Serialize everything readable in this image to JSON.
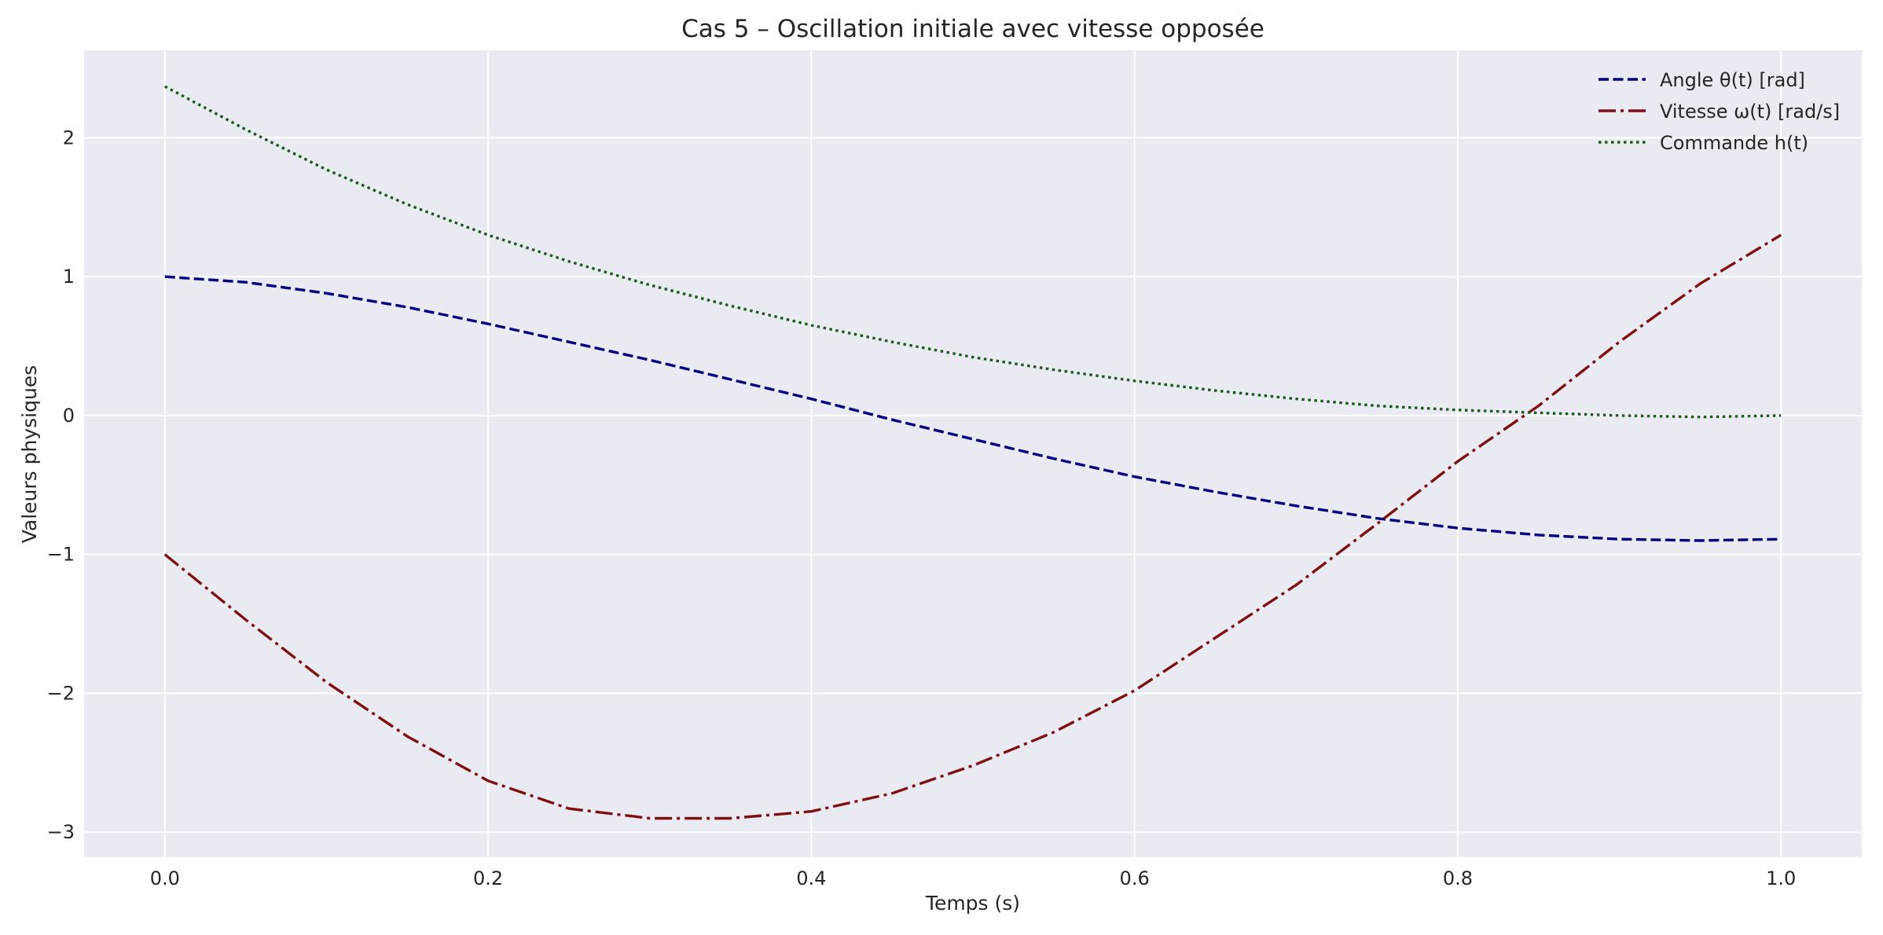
{
  "chart_data": {
    "type": "line",
    "title": "Cas 5 – Oscillation initiale avec vitesse opposée",
    "xlabel": "Temps (s)",
    "ylabel": "Valeurs physiques",
    "xlim": [
      -0.05,
      1.05
    ],
    "ylim": [
      -3.18,
      2.63
    ],
    "xticks": [
      0.0,
      0.2,
      0.4,
      0.6,
      0.8,
      1.0
    ],
    "xtick_labels": [
      "0.0",
      "0.2",
      "0.4",
      "0.6",
      "0.8",
      "1.0"
    ],
    "yticks": [
      -3,
      -2,
      -1,
      0,
      1,
      2
    ],
    "ytick_labels": [
      "−3",
      "−2",
      "−1",
      "0",
      "1",
      "2"
    ],
    "grid": true,
    "legend_position": "top-right",
    "background": "#eaeaf2",
    "x": [
      0.0,
      0.05,
      0.1,
      0.15,
      0.2,
      0.25,
      0.3,
      0.35,
      0.4,
      0.45,
      0.5,
      0.55,
      0.6,
      0.65,
      0.7,
      0.75,
      0.8,
      0.85,
      0.9,
      0.95,
      1.0
    ],
    "series": [
      {
        "name": "Angle θ(t) [rad]",
        "color": "#000080",
        "style": "dashed",
        "values": [
          1.0,
          0.96,
          0.88,
          0.78,
          0.66,
          0.53,
          0.4,
          0.26,
          0.12,
          -0.03,
          -0.17,
          -0.31,
          -0.44,
          -0.55,
          -0.65,
          -0.74,
          -0.81,
          -0.86,
          -0.89,
          -0.9,
          -0.89
        ]
      },
      {
        "name": "Vitesse ω(t) [rad/s]",
        "color": "#7f1010",
        "style": "dashdot",
        "values": [
          -1.0,
          -1.47,
          -1.92,
          -2.31,
          -2.63,
          -2.83,
          -2.9,
          -2.9,
          -2.85,
          -2.72,
          -2.52,
          -2.28,
          -1.98,
          -1.6,
          -1.22,
          -0.78,
          -0.33,
          0.07,
          0.53,
          0.95,
          1.3
        ]
      },
      {
        "name": "Commande h(t)",
        "color": "#1a5e1a",
        "style": "dotted",
        "values": [
          2.37,
          2.06,
          1.77,
          1.52,
          1.3,
          1.11,
          0.94,
          0.79,
          0.65,
          0.53,
          0.42,
          0.33,
          0.25,
          0.18,
          0.12,
          0.07,
          0.04,
          0.02,
          0.0,
          -0.01,
          0.0
        ]
      }
    ]
  }
}
